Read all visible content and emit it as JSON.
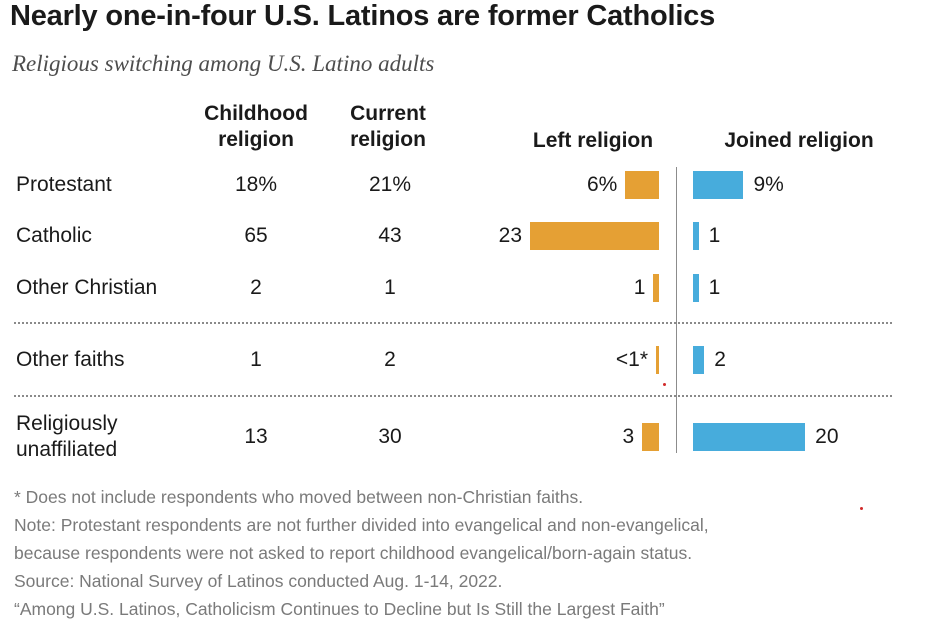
{
  "title": "Nearly one-in-four U.S. Latinos are former Catholics",
  "subtitle": "Religious switching among U.S. Latino adults",
  "columns": {
    "childhood": "Childhood\nreligion",
    "current": "Current\nreligion",
    "left": "Left religion",
    "joined": "Joined religion"
  },
  "chart_data": {
    "type": "bar",
    "title": "Nearly one-in-four U.S. Latinos are former Catholics",
    "subtitle": "Religious switching among U.S. Latino adults",
    "categories": [
      "Protestant",
      "Catholic",
      "Other Christian",
      "Other faiths",
      "Religiously unaffiliated"
    ],
    "category_labels": [
      "Protestant",
      "Catholic",
      "Other Christian",
      "Other faiths",
      "Religiously\nunaffiliated"
    ],
    "childhood_religion": [
      "18%",
      "65",
      "2",
      "1",
      "13"
    ],
    "current_religion": [
      "21%",
      "43",
      "1",
      "2",
      "30"
    ],
    "series": [
      {
        "name": "Left religion",
        "values": [
          6,
          23,
          1,
          0.5,
          3
        ],
        "labels": [
          "6%",
          "23",
          "1",
          "<1*",
          "3"
        ],
        "color": "#e5a034"
      },
      {
        "name": "Joined religion",
        "values": [
          9,
          1,
          1,
          2,
          20
        ],
        "labels": [
          "9%",
          "1",
          "1",
          "2",
          "20"
        ],
        "color": "#47acdc"
      }
    ],
    "xlim": [
      0,
      23
    ],
    "grid": false,
    "legend": "none"
  },
  "notes": [
    "* Does not include respondents who moved between non-Christian faiths.",
    "Note: Protestant respondents are not further divided into evangelical and non-evangelical,",
    "because respondents were not asked to report childhood evangelical/born-again status.",
    "Source: National Survey of Latinos conducted Aug. 1-14, 2022.",
    "“Among U.S. Latinos, Catholicism Continues to Decline but Is Still the Largest Faith”"
  ]
}
